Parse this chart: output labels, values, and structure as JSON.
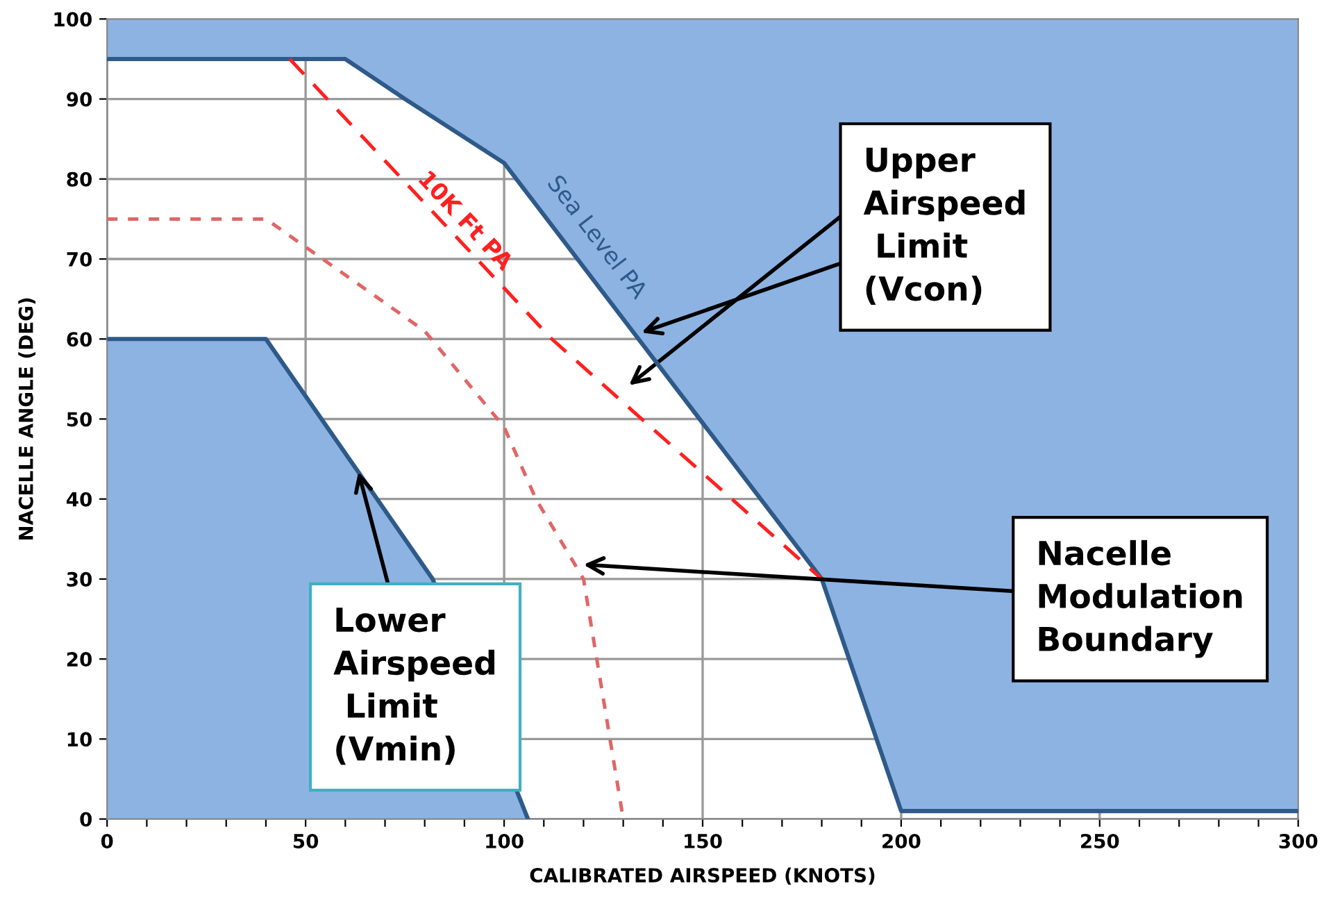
{
  "chart_data": {
    "type": "area",
    "xlabel": "CALIBRATED AIRSPEED (KNOTS)",
    "ylabel": "NACELLE ANGLE (DEG)",
    "xlim": [
      0,
      300
    ],
    "ylim": [
      0,
      100
    ],
    "xticks": [
      0,
      {
        "value": 10,
        "label": null
      },
      {
        "value": 20,
        "label": null
      },
      {
        "value": 30,
        "label": null
      },
      {
        "value": 40,
        "label": null
      },
      50,
      {
        "value": 60,
        "label": null
      },
      {
        "value": 70,
        "label": null
      },
      {
        "value": 80,
        "label": null
      },
      {
        "value": 90,
        "label": null
      },
      100,
      {
        "value": 110,
        "label": null
      },
      {
        "value": 120,
        "label": null
      },
      {
        "value": 130,
        "label": null
      },
      {
        "value": 140,
        "label": null
      },
      150,
      {
        "value": 160,
        "label": null
      },
      {
        "value": 170,
        "label": null
      },
      {
        "value": 180,
        "label": null
      },
      {
        "value": 190,
        "label": null
      },
      200,
      {
        "value": 210,
        "label": null
      },
      {
        "value": 220,
        "label": null
      },
      {
        "value": 230,
        "label": null
      },
      {
        "value": 240,
        "label": null
      },
      250,
      {
        "value": 260,
        "label": null
      },
      {
        "value": 270,
        "label": null
      },
      {
        "value": 280,
        "label": null
      },
      {
        "value": 290,
        "label": null
      },
      300
    ],
    "yticks": [
      0,
      10,
      20,
      30,
      40,
      50,
      60,
      70,
      80,
      90,
      100
    ],
    "grid": true,
    "legend": false,
    "series": [
      {
        "name": "Sea Level PA",
        "type": "line",
        "color": "#2e5a8a",
        "x": [
          0,
          60,
          75,
          100,
          180,
          200,
          300
        ],
        "values": [
          95,
          95,
          90,
          82,
          30,
          1,
          1
        ],
        "lower": [
          95,
          95,
          90,
          82,
          30,
          1,
          1
        ],
        "upper": [
          100,
          100,
          100,
          100,
          100,
          100,
          100
        ]
      },
      {
        "color": "#8db3e2",
        "x": [
          0,
          40,
          82,
          106
        ],
        "values": [
          60,
          60,
          30,
          0
        ]
      },
      {
        "name": "10K Ft PA",
        "type": "line",
        "line_style": "dashed",
        "color": "#ff2020",
        "x": [
          46,
          112,
          180
        ],
        "values": [
          95,
          60,
          30
        ]
      },
      {
        "type": "line",
        "line_style": "dotted",
        "color": "#e06666",
        "x": [
          0,
          40,
          80,
          100,
          108,
          120,
          124,
          130
        ],
        "values": [
          75,
          75,
          61,
          49,
          40,
          30,
          18,
          0
        ]
      }
    ],
    "annotations": [
      {
        "text": "Upper\nAirspeed\n Limit\n(Vcon)",
        "x": 134.6,
        "y": 60.8
      },
      {
        "text": "Nacelle\nModulation\nBoundary",
        "x": 120,
        "y": 31.8
      },
      {
        "text": "Lower\nAirspeed\n Limit\n(Vmin)",
        "x": 63.3,
        "y": 43.4
      }
    ]
  }
}
